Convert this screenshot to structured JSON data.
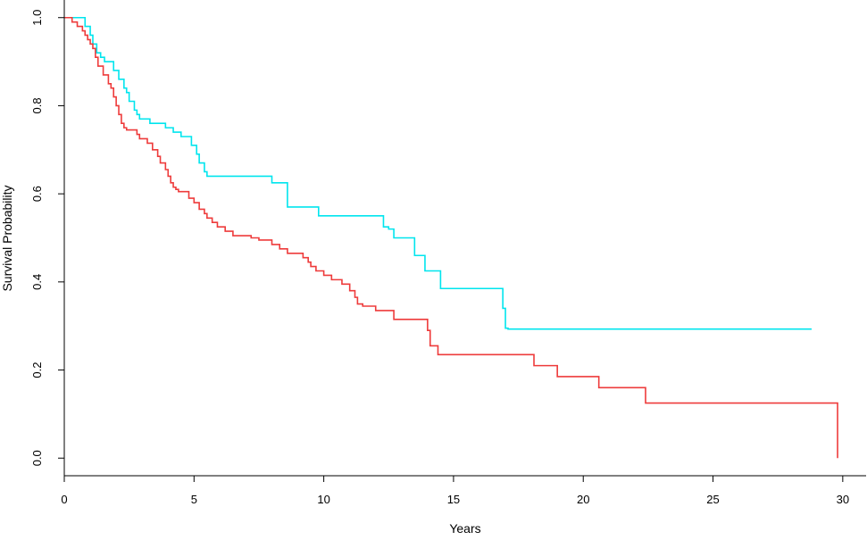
{
  "chart_data": {
    "type": "line",
    "title": "",
    "xlabel": "Years",
    "ylabel": "Survival Probability",
    "xlim": [
      0,
      30.9
    ],
    "ylim": [
      -0.04,
      1.04
    ],
    "x_ticks": [
      0,
      5,
      10,
      15,
      20,
      25,
      30
    ],
    "y_ticks": [
      0.0,
      0.2,
      0.4,
      0.6,
      0.8,
      1.0
    ],
    "x_tick_labels": [
      "0",
      "5",
      "10",
      "15",
      "20",
      "25",
      "30"
    ],
    "y_tick_labels": [
      "0.0",
      "0.2",
      "0.4",
      "0.6",
      "0.8",
      "1.0"
    ],
    "grid": false,
    "legend": "none",
    "series": [
      {
        "color": "#00e5ee",
        "step": true,
        "x": [
          0,
          0.8,
          1.0,
          1.1,
          1.25,
          1.4,
          1.55,
          1.9,
          2.1,
          2.3,
          2.4,
          2.5,
          2.7,
          2.8,
          2.9,
          3.05,
          3.3,
          3.9,
          4.2,
          4.5,
          4.9,
          5.1,
          5.2,
          5.4,
          5.5,
          8.0,
          8.6,
          9.8,
          12.3,
          12.5,
          12.7,
          13.5,
          13.9,
          14.5,
          16.9,
          17.0,
          17.1,
          28.8
        ],
        "y": [
          1.0,
          0.98,
          0.96,
          0.94,
          0.92,
          0.91,
          0.9,
          0.88,
          0.86,
          0.84,
          0.83,
          0.81,
          0.79,
          0.78,
          0.77,
          0.77,
          0.76,
          0.75,
          0.74,
          0.73,
          0.71,
          0.69,
          0.67,
          0.65,
          0.64,
          0.625,
          0.57,
          0.55,
          0.525,
          0.52,
          0.5,
          0.46,
          0.425,
          0.385,
          0.34,
          0.295,
          0.293,
          0.293
        ]
      },
      {
        "color": "#ee3b3b",
        "step": true,
        "x": [
          0,
          0.3,
          0.5,
          0.7,
          0.8,
          0.9,
          1.0,
          1.1,
          1.2,
          1.3,
          1.5,
          1.7,
          1.8,
          1.9,
          2.0,
          2.1,
          2.2,
          2.3,
          2.4,
          2.5,
          2.8,
          2.9,
          3.2,
          3.4,
          3.6,
          3.7,
          3.9,
          4.0,
          4.1,
          4.2,
          4.3,
          4.4,
          4.5,
          4.8,
          5.0,
          5.2,
          5.4,
          5.5,
          5.7,
          5.9,
          6.2,
          6.5,
          7.2,
          7.5,
          8.0,
          8.3,
          8.6,
          9.2,
          9.4,
          9.5,
          9.7,
          10.0,
          10.3,
          10.7,
          11.0,
          11.2,
          11.3,
          11.5,
          12.0,
          12.7,
          14.0,
          14.1,
          14.4,
          18.1,
          19.0,
          20.6,
          22.4,
          29.8
        ],
        "y": [
          1.0,
          0.99,
          0.98,
          0.97,
          0.96,
          0.95,
          0.94,
          0.93,
          0.91,
          0.89,
          0.87,
          0.85,
          0.84,
          0.82,
          0.8,
          0.78,
          0.76,
          0.75,
          0.745,
          0.745,
          0.735,
          0.725,
          0.715,
          0.7,
          0.685,
          0.67,
          0.655,
          0.64,
          0.625,
          0.615,
          0.61,
          0.605,
          0.605,
          0.59,
          0.58,
          0.565,
          0.555,
          0.545,
          0.535,
          0.525,
          0.515,
          0.505,
          0.5,
          0.495,
          0.485,
          0.475,
          0.465,
          0.455,
          0.445,
          0.435,
          0.425,
          0.415,
          0.405,
          0.395,
          0.38,
          0.365,
          0.35,
          0.345,
          0.335,
          0.315,
          0.29,
          0.255,
          0.235,
          0.21,
          0.185,
          0.16,
          0.125,
          0.0
        ]
      }
    ]
  }
}
